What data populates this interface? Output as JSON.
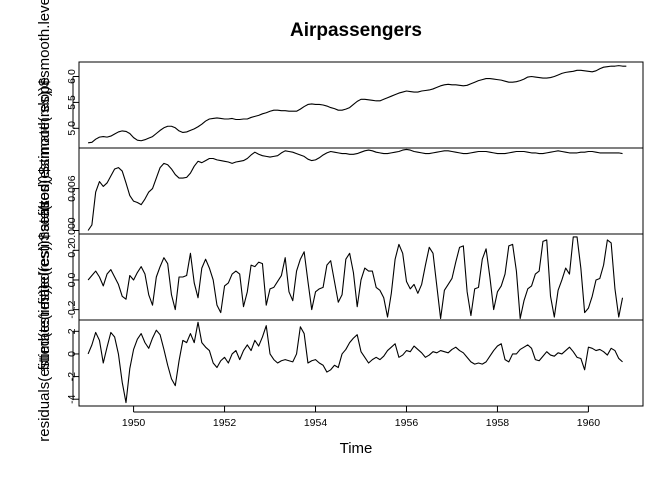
{
  "chart_data": {
    "type": "line",
    "title": "Airpassengers",
    "xlabel": "Time",
    "xlim": [
      1948.8,
      1961.2
    ],
    "x_ticks": [
      "1950",
      "1952",
      "1954",
      "1956",
      "1958",
      "1960"
    ],
    "x_start": 1949,
    "x_step": 0.08333333,
    "panels": [
      {
        "ylabel": "fitted(estimate(res))$smooth.level",
        "ylim": [
          4.62,
          6.28
        ],
        "y_ticks": [
          "5.0",
          "5.5",
          "6.0"
        ],
        "values": [
          4.72,
          4.73,
          4.79,
          4.83,
          4.84,
          4.83,
          4.85,
          4.89,
          4.93,
          4.95,
          4.94,
          4.9,
          4.82,
          4.77,
          4.76,
          4.78,
          4.81,
          4.84,
          4.9,
          4.96,
          5.01,
          5.04,
          5.04,
          5.01,
          4.95,
          4.92,
          4.93,
          4.96,
          4.99,
          5.03,
          5.08,
          5.14,
          5.18,
          5.19,
          5.2,
          5.19,
          5.18,
          5.18,
          5.19,
          5.17,
          5.17,
          5.18,
          5.18,
          5.21,
          5.23,
          5.25,
          5.28,
          5.3,
          5.33,
          5.35,
          5.35,
          5.34,
          5.34,
          5.33,
          5.33,
          5.33,
          5.37,
          5.42,
          5.46,
          5.47,
          5.46,
          5.46,
          5.45,
          5.43,
          5.4,
          5.38,
          5.35,
          5.35,
          5.37,
          5.4,
          5.46,
          5.52,
          5.56,
          5.56,
          5.55,
          5.54,
          5.53,
          5.53,
          5.56,
          5.59,
          5.62,
          5.65,
          5.68,
          5.7,
          5.72,
          5.71,
          5.7,
          5.7,
          5.72,
          5.73,
          5.74,
          5.76,
          5.79,
          5.82,
          5.84,
          5.85,
          5.84,
          5.84,
          5.83,
          5.82,
          5.83,
          5.86,
          5.89,
          5.92,
          5.94,
          5.96,
          5.96,
          5.95,
          5.94,
          5.93,
          5.91,
          5.89,
          5.89,
          5.9,
          5.92,
          5.95,
          5.99,
          6.0,
          5.99,
          5.98,
          5.97,
          5.97,
          5.98,
          6.0,
          6.03,
          6.06,
          6.08,
          6.09,
          6.1,
          6.12,
          6.12,
          6.11,
          6.1,
          6.09,
          6.11,
          6.15,
          6.18,
          6.19,
          6.2,
          6.2,
          6.21,
          6.2,
          6.2
        ]
      },
      {
        "ylabel": "fitted(estimate(res))$smooth.slope",
        "ylim": [
          -0.0005,
          0.0118
        ],
        "y_ticks": [
          "0.000",
          "0.006"
        ],
        "values": [
          0.0,
          0.0008,
          0.0055,
          0.007,
          0.0063,
          0.0068,
          0.0078,
          0.0088,
          0.009,
          0.0085,
          0.0068,
          0.005,
          0.0042,
          0.004,
          0.0037,
          0.0045,
          0.0055,
          0.006,
          0.0075,
          0.009,
          0.0096,
          0.0094,
          0.0088,
          0.008,
          0.0075,
          0.0075,
          0.0076,
          0.0082,
          0.0092,
          0.0099,
          0.0097,
          0.01,
          0.0103,
          0.0103,
          0.0101,
          0.01,
          0.0099,
          0.0098,
          0.0096,
          0.0098,
          0.0099,
          0.01,
          0.0103,
          0.0108,
          0.0112,
          0.0109,
          0.0107,
          0.0106,
          0.0105,
          0.0106,
          0.0107,
          0.0111,
          0.0114,
          0.0113,
          0.0112,
          0.011,
          0.0108,
          0.0106,
          0.0102,
          0.01,
          0.0101,
          0.0104,
          0.0108,
          0.0111,
          0.0113,
          0.0112,
          0.0111,
          0.011,
          0.011,
          0.0109,
          0.0109,
          0.011,
          0.0112,
          0.0114,
          0.0115,
          0.0114,
          0.0112,
          0.0111,
          0.011,
          0.011,
          0.0111,
          0.0112,
          0.0113,
          0.0115,
          0.0116,
          0.0115,
          0.0113,
          0.0112,
          0.0111,
          0.011,
          0.011,
          0.0111,
          0.0112,
          0.0113,
          0.0114,
          0.0114,
          0.0113,
          0.0112,
          0.0111,
          0.011,
          0.011,
          0.0111,
          0.0112,
          0.0113,
          0.0113,
          0.0113,
          0.0112,
          0.0111,
          0.011,
          0.011,
          0.011,
          0.0111,
          0.0112,
          0.0113,
          0.0113,
          0.0113,
          0.0112,
          0.0111,
          0.0111,
          0.011,
          0.011,
          0.0111,
          0.0112,
          0.0113,
          0.0114,
          0.0113,
          0.0112,
          0.0111,
          0.0111,
          0.0111,
          0.0112,
          0.0112,
          0.0113,
          0.0113,
          0.0112,
          0.0111,
          0.0111,
          0.0111,
          0.0111,
          0.0111,
          0.0111,
          0.011
        ]
      },
      {
        "ylabel": "fitted(estimate(res))$season",
        "ylim": [
          -0.27,
          0.31
        ],
        "y_ticks": [
          "-0.2",
          "0.0",
          "0.2"
        ],
        "values": [
          0.0,
          0.03,
          0.06,
          0.02,
          -0.04,
          0.04,
          0.07,
          0.02,
          -0.03,
          -0.11,
          -0.13,
          0.03,
          0.0,
          0.05,
          0.09,
          0.04,
          -0.1,
          -0.17,
          0.02,
          0.09,
          0.15,
          0.11,
          -0.1,
          -0.2,
          0.02,
          0.02,
          0.03,
          0.18,
          -0.02,
          -0.12,
          0.08,
          0.14,
          0.08,
          0.0,
          -0.17,
          -0.22,
          -0.04,
          -0.02,
          0.04,
          0.06,
          0.04,
          -0.18,
          -0.08,
          0.1,
          0.09,
          0.12,
          0.11,
          -0.17,
          -0.06,
          -0.05,
          -0.01,
          0.03,
          0.15,
          -0.08,
          -0.14,
          0.06,
          0.14,
          0.19,
          -0.01,
          -0.2,
          -0.08,
          -0.06,
          -0.05,
          0.1,
          0.13,
          -0.01,
          -0.15,
          -0.1,
          0.14,
          0.18,
          0.05,
          -0.18,
          0.0,
          0.08,
          0.06,
          0.06,
          -0.05,
          -0.07,
          -0.12,
          -0.25,
          -0.09,
          0.14,
          0.24,
          0.18,
          -0.01,
          -0.06,
          -0.03,
          -0.09,
          -0.03,
          0.1,
          0.22,
          0.18,
          -0.04,
          -0.26,
          -0.07,
          -0.03,
          0.01,
          0.12,
          0.22,
          0.23,
          -0.08,
          -0.24,
          -0.06,
          -0.05,
          0.14,
          0.21,
          0.02,
          -0.2,
          -0.08,
          -0.04,
          0.04,
          0.23,
          0.24,
          0.06,
          -0.26,
          -0.14,
          -0.06,
          -0.04,
          0.04,
          0.06,
          0.26,
          0.27,
          -0.11,
          -0.25,
          -0.07,
          0.0,
          0.08,
          0.04,
          0.29,
          0.29,
          0.08,
          -0.22,
          -0.19,
          -0.11,
          0.0,
          0.01,
          0.1,
          0.27,
          0.25,
          -0.06,
          -0.25,
          -0.12
        ]
      },
      {
        "ylabel": "residuals(estimate(res))",
        "ylim": [
          -4.6,
          3.0
        ],
        "y_ticks": [
          "-4",
          "-2",
          "0",
          "2"
        ],
        "values": [
          0.0,
          0.8,
          1.9,
          1.2,
          -0.8,
          0.6,
          1.9,
          1.5,
          0.0,
          -2.5,
          -4.3,
          -1.3,
          0.4,
          1.3,
          1.8,
          1.0,
          0.5,
          1.4,
          2.1,
          1.7,
          0.4,
          -1.0,
          -2.2,
          -2.8,
          -0.6,
          1.2,
          1.0,
          1.8,
          1.0,
          2.8,
          1.0,
          0.6,
          0.3,
          -0.8,
          -1.2,
          -0.6,
          -0.3,
          -0.8,
          0.0,
          0.3,
          -0.5,
          0.3,
          0.8,
          0.3,
          1.2,
          0.7,
          1.5,
          2.5,
          0.0,
          -0.5,
          -0.8,
          -0.6,
          -0.5,
          -0.6,
          -0.7,
          0.0,
          2.4,
          1.8,
          -0.8,
          -0.6,
          -0.5,
          -0.8,
          -1.0,
          -1.6,
          -1.4,
          -1.0,
          -1.2,
          0.0,
          0.4,
          1.0,
          1.4,
          1.7,
          0.2,
          -0.3,
          -0.8,
          -0.5,
          -0.3,
          -0.5,
          -0.2,
          0.3,
          0.6,
          0.9,
          -0.3,
          -0.1,
          0.3,
          0.2,
          0.7,
          0.4,
          0.1,
          -0.3,
          -0.1,
          0.2,
          0.1,
          0.3,
          0.2,
          0.1,
          0.4,
          0.6,
          0.3,
          0.1,
          -0.3,
          -0.7,
          -0.9,
          -0.8,
          -0.9,
          -0.7,
          -0.2,
          0.3,
          0.7,
          0.9,
          -0.5,
          -0.7,
          0.0,
          0.0,
          0.4,
          0.6,
          0.8,
          0.5,
          -0.5,
          -0.6,
          -0.2,
          0.2,
          -0.1,
          -0.2,
          0.1,
          0.0,
          0.3,
          0.6,
          0.2,
          -0.3,
          -0.4,
          -1.4,
          0.6,
          0.5,
          0.3,
          0.4,
          0.2,
          -0.1,
          0.5,
          0.3,
          -0.4,
          -0.7
        ]
      }
    ]
  }
}
